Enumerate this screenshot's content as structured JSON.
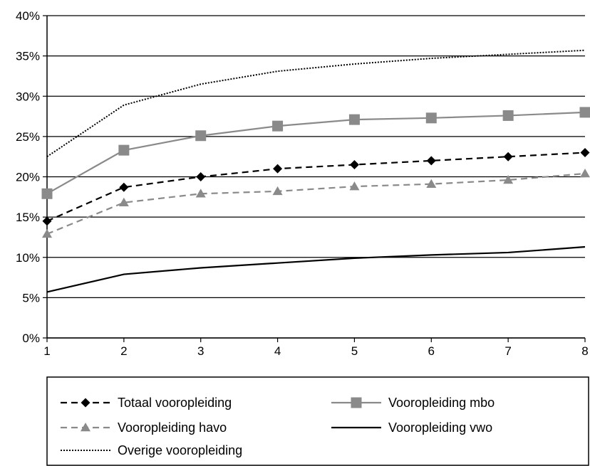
{
  "chart_data": {
    "type": "line",
    "x": [
      1,
      2,
      3,
      4,
      5,
      6,
      7,
      8
    ],
    "xlim": [
      1,
      8
    ],
    "ylim": [
      0,
      40
    ],
    "y_ticks": [
      0,
      5,
      10,
      15,
      20,
      25,
      30,
      35,
      40
    ],
    "y_tick_labels": [
      "0%",
      "5%",
      "10%",
      "15%",
      "20%",
      "25%",
      "30%",
      "35%",
      "40%"
    ],
    "x_tick_labels": [
      "1",
      "2",
      "3",
      "4",
      "5",
      "6",
      "7",
      "8"
    ],
    "grid": "horizontal",
    "legend_position": "bottom",
    "series": [
      {
        "name": "Totaal vooropleiding",
        "values": [
          14.5,
          18.7,
          20.0,
          21.0,
          21.5,
          22.0,
          22.5,
          23.0
        ],
        "color": "#000000",
        "style": "dashed",
        "marker": "diamond"
      },
      {
        "name": "Vooropleiding mbo",
        "values": [
          17.9,
          23.3,
          25.1,
          26.3,
          27.1,
          27.3,
          27.6,
          28.0
        ],
        "color": "#8a8a8a",
        "style": "solid",
        "marker": "square"
      },
      {
        "name": "Vooropleiding havo",
        "values": [
          12.9,
          16.8,
          17.9,
          18.2,
          18.8,
          19.1,
          19.6,
          20.4
        ],
        "color": "#8a8a8a",
        "style": "dashed",
        "marker": "triangle"
      },
      {
        "name": "Vooropleiding vwo",
        "values": [
          5.7,
          7.9,
          8.7,
          9.3,
          9.9,
          10.3,
          10.6,
          11.3
        ],
        "color": "#000000",
        "style": "solid",
        "marker": "none"
      },
      {
        "name": "Overige vooropleiding",
        "values": [
          22.5,
          28.9,
          31.5,
          33.1,
          34.0,
          34.7,
          35.2,
          35.7
        ],
        "color": "#000000",
        "style": "dotted",
        "marker": "none"
      }
    ]
  }
}
